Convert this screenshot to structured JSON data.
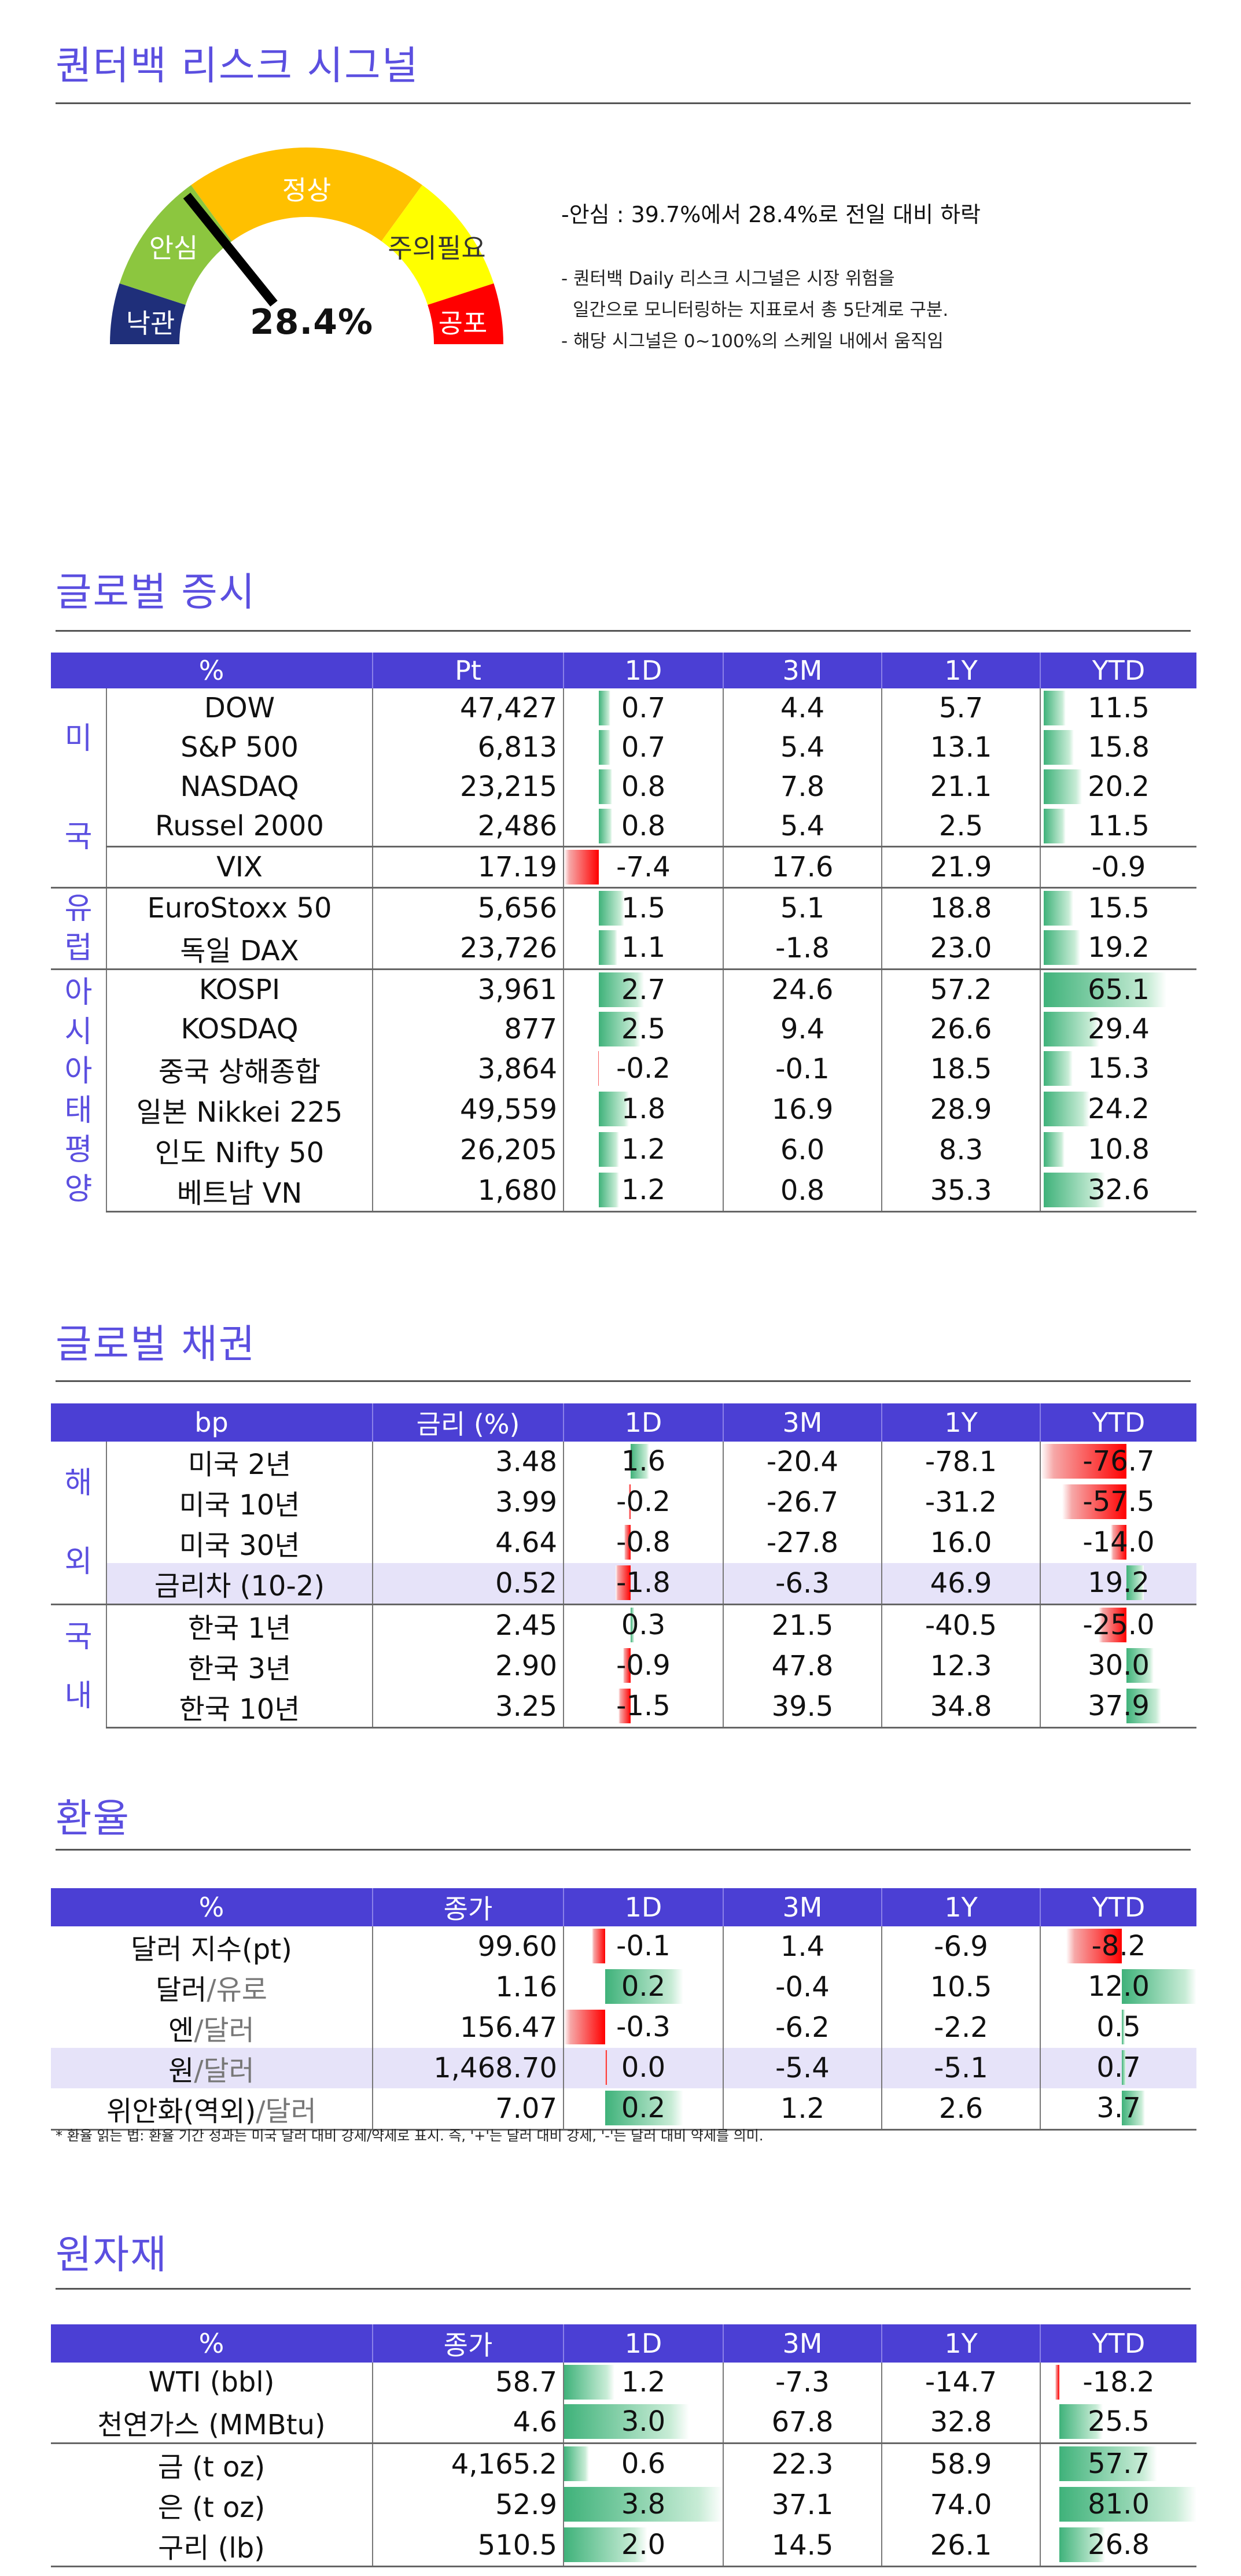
{
  "sections": {
    "risk_title": "퀀터백 리스크 시그널",
    "equity_title": "글로벌 증시",
    "bond_title": "글로벌 채권",
    "fx_title": "환율",
    "commodity_title": "원자재"
  },
  "gauge": {
    "value": "28.4%",
    "value_fraction": 0.284,
    "labels": [
      "낙관",
      "안심",
      "정상",
      "주의필요",
      "공포"
    ],
    "colors": [
      "#1f2f7a",
      "#8cc63f",
      "#ffc000",
      "#ffff00",
      "#ff0000"
    ]
  },
  "description": {
    "headline": "-안심 : 39.7%에서 28.4%로 전일 대비 하락",
    "line1": "- 퀀터백 Daily 리스크 시그널은 시장 위험을",
    "line2": "일간으로 모니터링하는 지표로서 총 5단계로 구분.",
    "line3": "- 해당 시그널은 0~100%의 스케일 내에서 움직임"
  },
  "equity": {
    "headers": [
      "%",
      "Pt",
      "1D",
      "3M",
      "1Y",
      "YTD"
    ],
    "groups": [
      {
        "label": "미국",
        "rows": [
          {
            "name": "DOW",
            "pt": "47,427",
            "d1": "0.7",
            "m3": "4.4",
            "y1": "5.7",
            "ytd": "11.5"
          },
          {
            "name": "S&P 500",
            "pt": "6,813",
            "d1": "0.7",
            "m3": "5.4",
            "y1": "13.1",
            "ytd": "15.8"
          },
          {
            "name": "NASDAQ",
            "pt": "23,215",
            "d1": "0.8",
            "m3": "7.8",
            "y1": "21.1",
            "ytd": "20.2"
          },
          {
            "name": "Russel 2000",
            "pt": "2,486",
            "d1": "0.8",
            "m3": "5.4",
            "y1": "2.5",
            "ytd": "11.5"
          },
          {
            "name": "VIX",
            "pt": "17.19",
            "d1": "-7.4",
            "m3": "17.6",
            "y1": "21.9",
            "ytd": "-0.9"
          }
        ]
      },
      {
        "label": "유럽",
        "rows": [
          {
            "name": "EuroStoxx 50",
            "pt": "5,656",
            "d1": "1.5",
            "m3": "5.1",
            "y1": "18.8",
            "ytd": "15.5"
          },
          {
            "name": "독일 DAX",
            "pt": "23,726",
            "d1": "1.1",
            "m3": "-1.8",
            "y1": "23.0",
            "ytd": "19.2"
          }
        ]
      },
      {
        "label": "아시아태평양",
        "rows": [
          {
            "name": "KOSPI",
            "pt": "3,961",
            "d1": "2.7",
            "m3": "24.6",
            "y1": "57.2",
            "ytd": "65.1"
          },
          {
            "name": "KOSDAQ",
            "pt": "877",
            "d1": "2.5",
            "m3": "9.4",
            "y1": "26.6",
            "ytd": "29.4"
          },
          {
            "name": "중국 상해종합",
            "pt": "3,864",
            "d1": "-0.2",
            "m3": "-0.1",
            "y1": "18.5",
            "ytd": "15.3"
          },
          {
            "name": "일본 Nikkei 225",
            "pt": "49,559",
            "d1": "1.8",
            "m3": "16.9",
            "y1": "28.9",
            "ytd": "24.2"
          },
          {
            "name": "인도 Nifty 50",
            "pt": "26,205",
            "d1": "1.2",
            "m3": "6.0",
            "y1": "8.3",
            "ytd": "10.8"
          },
          {
            "name": "베트남 VN",
            "pt": "1,680",
            "d1": "1.2",
            "m3": "0.8",
            "y1": "35.3",
            "ytd": "32.6"
          }
        ]
      }
    ]
  },
  "bonds": {
    "headers": [
      "bp",
      "금리 (%)",
      "1D",
      "3M",
      "1Y",
      "YTD"
    ],
    "groups": [
      {
        "label": "해외",
        "rows": [
          {
            "name": "미국 2년",
            "pt": "3.48",
            "d1": "1.6",
            "m3": "-20.4",
            "y1": "-78.1",
            "ytd": "-76.7"
          },
          {
            "name": "미국 10년",
            "pt": "3.99",
            "d1": "-0.2",
            "m3": "-26.7",
            "y1": "-31.2",
            "ytd": "-57.5"
          },
          {
            "name": "미국 30년",
            "pt": "4.64",
            "d1": "-0.8",
            "m3": "-27.8",
            "y1": "16.0",
            "ytd": "-14.0"
          },
          {
            "name": "금리차 (10-2)",
            "pt": "0.52",
            "d1": "-1.8",
            "m3": "-6.3",
            "y1": "46.9",
            "ytd": "19.2"
          }
        ]
      },
      {
        "label": "국내",
        "rows": [
          {
            "name": "한국 1년",
            "pt": "2.45",
            "d1": "0.3",
            "m3": "21.5",
            "y1": "-40.5",
            "ytd": "-25.0"
          },
          {
            "name": "한국 3년",
            "pt": "2.90",
            "d1": "-0.9",
            "m3": "47.8",
            "y1": "12.3",
            "ytd": "30.0"
          },
          {
            "name": "한국 10년",
            "pt": "3.25",
            "d1": "-1.5",
            "m3": "39.5",
            "y1": "34.8",
            "ytd": "37.9"
          }
        ]
      }
    ]
  },
  "fx": {
    "headers": [
      "%",
      "종가",
      "1D",
      "3M",
      "1Y",
      "YTD"
    ],
    "rows": [
      {
        "name_a": "달러 지수(pt)",
        "name_b": "",
        "name_c": "",
        "pt": "99.60",
        "d1": "-0.1",
        "m3": "1.4",
        "y1": "-6.9",
        "ytd": "-8.2"
      },
      {
        "name_a": "달러",
        "name_b": "/유로",
        "name_c": "",
        "pt": "1.16",
        "d1": "0.2",
        "m3": "-0.4",
        "y1": "10.5",
        "ytd": "12.0"
      },
      {
        "name_a": "엔",
        "name_b": "/달러",
        "name_c": "",
        "pt": "156.47",
        "d1": "-0.3",
        "m3": "-6.2",
        "y1": "-2.2",
        "ytd": "0.5"
      },
      {
        "name_a": "원",
        "name_b": "/달러",
        "name_c": "",
        "pt": "1,468.70",
        "d1": "0.0",
        "m3": "-5.4",
        "y1": "-5.1",
        "ytd": "0.7"
      },
      {
        "name_a": "위안화(역외)",
        "name_b": "/달러",
        "name_c": "",
        "pt": "7.07",
        "d1": "0.2",
        "m3": "1.2",
        "y1": "2.6",
        "ytd": "3.7"
      }
    ],
    "footnote": "* 환율 읽는 법: 환율 기간 성과는 미국 달러 대비 강세/약세로 표시. 즉, '+'는 달러 대비 강세, '-'는 달러 대비 약세를 의미."
  },
  "commodities": {
    "headers": [
      "%",
      "종가",
      "1D",
      "3M",
      "1Y",
      "YTD"
    ],
    "rows": [
      {
        "name": "WTI (bbl)",
        "pt": "58.7",
        "d1": "1.2",
        "m3": "-7.3",
        "y1": "-14.7",
        "ytd": "-18.2"
      },
      {
        "name": "천연가스 (MMBtu)",
        "pt": "4.6",
        "d1": "3.0",
        "m3": "67.8",
        "y1": "32.8",
        "ytd": "25.5"
      },
      {
        "name": "금 (t oz)",
        "pt": "4,165.2",
        "d1": "0.6",
        "m3": "22.3",
        "y1": "58.9",
        "ytd": "57.7"
      },
      {
        "name": "은 (t oz)",
        "pt": "52.9",
        "d1": "3.8",
        "m3": "37.1",
        "y1": "74.0",
        "ytd": "81.0"
      },
      {
        "name": "구리 (lb)",
        "pt": "510.5",
        "d1": "2.0",
        "m3": "14.5",
        "y1": "26.1",
        "ytd": "26.8"
      }
    ]
  }
}
